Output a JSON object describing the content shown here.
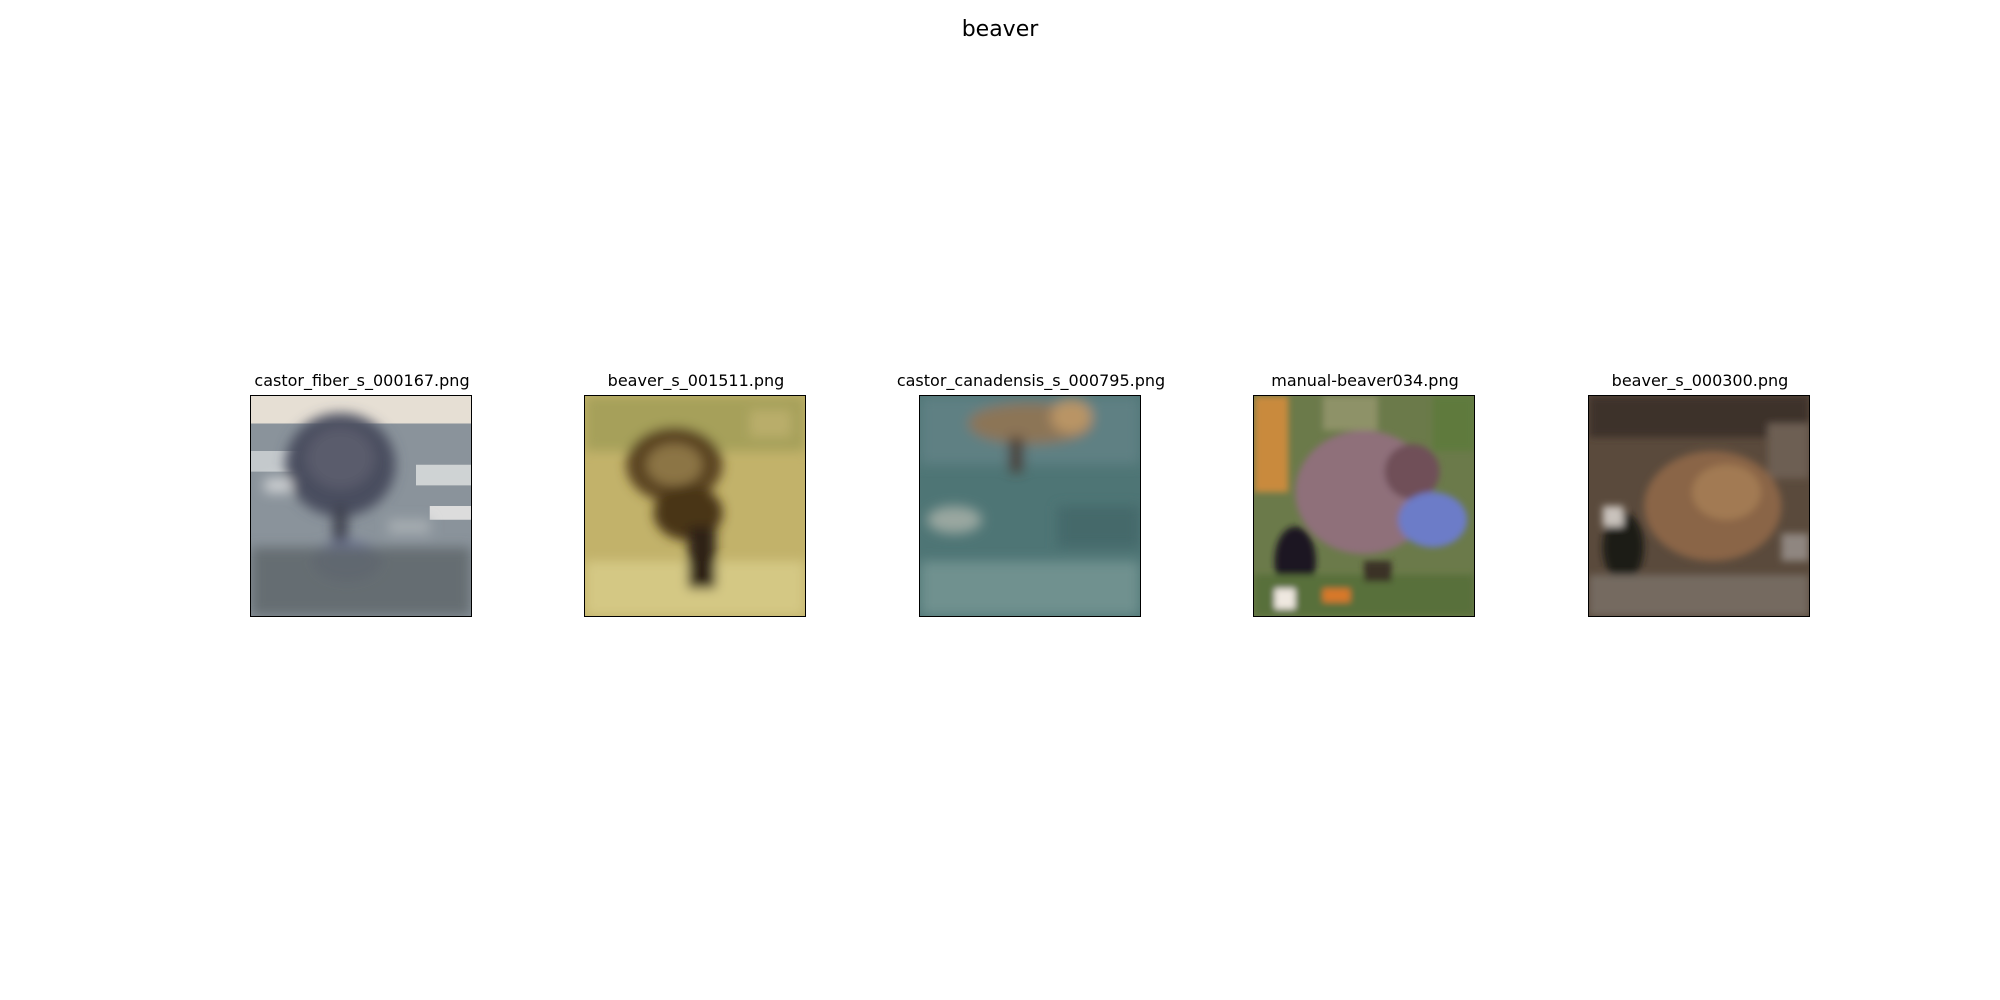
{
  "figure": {
    "title": "beaver"
  },
  "images": [
    {
      "caption": "castor_fiber_s_000167.png"
    },
    {
      "caption": "beaver_s_001511.png"
    },
    {
      "caption": "castor_canadensis_s_000795.png"
    },
    {
      "caption": "manual-beaver034.png"
    },
    {
      "caption": "beaver_s_000300.png"
    }
  ]
}
